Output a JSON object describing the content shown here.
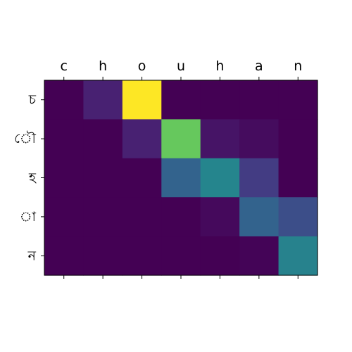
{
  "chart_data": {
    "type": "heatmap",
    "title": "",
    "xlabel": "",
    "ylabel": "",
    "x_tick_labels": [
      "c",
      "h",
      "o",
      "u",
      "h",
      "a",
      "n"
    ],
    "y_tick_labels": [
      "চ",
      "ৌ",
      "হ",
      "া",
      "ন"
    ],
    "x_ticks_position": "top",
    "colormap": "viridis",
    "value_range": [
      0,
      1
    ],
    "grid": false,
    "values": [
      [
        0.0,
        0.12,
        1.0,
        0.0,
        0.0,
        0.0,
        0.0
      ],
      [
        0.0,
        0.0,
        0.12,
        0.85,
        0.07,
        0.04,
        0.0
      ],
      [
        0.0,
        0.0,
        0.0,
        0.4,
        0.57,
        0.22,
        0.0
      ],
      [
        0.0,
        0.0,
        0.0,
        0.0,
        0.03,
        0.4,
        0.3
      ],
      [
        0.0,
        0.0,
        0.0,
        0.0,
        0.0,
        0.01,
        0.55
      ]
    ]
  }
}
